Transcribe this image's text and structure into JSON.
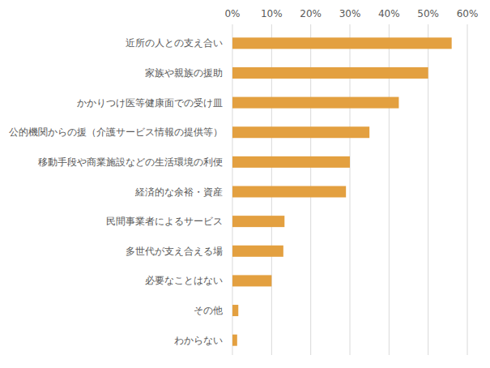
{
  "chart_data": {
    "type": "bar",
    "orientation": "horizontal",
    "categories": [
      "近所の人との支え合い",
      "家族や親族の援助",
      "かかりつけ医等健康面での受け皿",
      "公的機関からの援（介護サービス情報の提供等）",
      "移動手段や商業施設などの生活環境の利便",
      "経済的な余裕・資産",
      "民間事業者によるサービス",
      "多世代が支え合える場",
      "必要なことはない",
      "その他",
      "わからない"
    ],
    "values": [
      56,
      50,
      42.5,
      35,
      30,
      29,
      13.3,
      13,
      10,
      1.5,
      1.2
    ],
    "color": "#e3a040",
    "xlim": [
      0,
      60
    ],
    "xticks": [
      {
        "value": 0,
        "label": "0%"
      },
      {
        "value": 10,
        "label": "10%"
      },
      {
        "value": 20,
        "label": "20%"
      },
      {
        "value": 30,
        "label": "30%"
      },
      {
        "value": 40,
        "label": "40%"
      },
      {
        "value": 50,
        "label": "50%"
      },
      {
        "value": 60,
        "label": "60%"
      }
    ],
    "grid": true
  }
}
